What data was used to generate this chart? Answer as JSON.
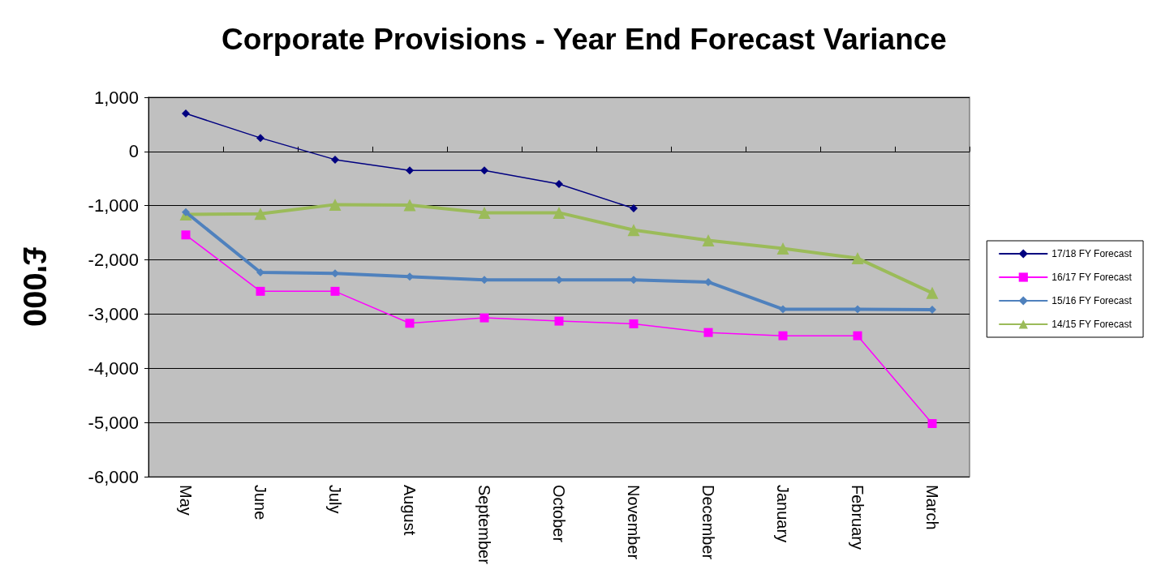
{
  "chart_data": {
    "type": "line",
    "title": "Corporate Provisions - Year End Forecast Variance",
    "ylabel": "£'000",
    "categories": [
      "May",
      "June",
      "July",
      "August",
      "September",
      "October",
      "November",
      "December",
      "January",
      "February",
      "March"
    ],
    "series": [
      {
        "name": "17/18 FY Forecast",
        "color": "#000080",
        "marker": "diamond",
        "values": [
          700,
          250,
          -150,
          -350,
          -350,
          -600,
          -1050,
          null,
          null,
          null,
          null
        ]
      },
      {
        "name": "16/17 FY Forecast",
        "color": "#ff00ff",
        "marker": "square",
        "values": [
          -1540,
          -2580,
          -2580,
          -3170,
          -3070,
          -3130,
          -3180,
          -3340,
          -3400,
          -3400,
          -5020
        ]
      },
      {
        "name": "15/16 FY Forecast",
        "color": "#4f81bd",
        "marker": "diamond",
        "values": [
          -1120,
          -2230,
          -2250,
          -2310,
          -2370,
          -2370,
          -2370,
          -2410,
          -2910,
          -2910,
          -2920
        ]
      },
      {
        "name": "14/15 FY Forecast",
        "color": "#9bbb59",
        "marker": "triangle",
        "values": [
          -1160,
          -1150,
          -980,
          -990,
          -1130,
          -1130,
          -1450,
          -1640,
          -1790,
          -1970,
          -2610
        ]
      }
    ],
    "ylim": [
      -6000,
      1000
    ],
    "yticks": [
      {
        "value": -6000,
        "label": "-6,000"
      },
      {
        "value": -5000,
        "label": "-5,000"
      },
      {
        "value": -4000,
        "label": "-4,000"
      },
      {
        "value": -3000,
        "label": "-3,000"
      },
      {
        "value": -2000,
        "label": "-2,000"
      },
      {
        "value": -1000,
        "label": "-1,000"
      },
      0,
      {
        "value": 1000,
        "label": "1,000"
      }
    ],
    "grid": "y",
    "legend": "right"
  }
}
